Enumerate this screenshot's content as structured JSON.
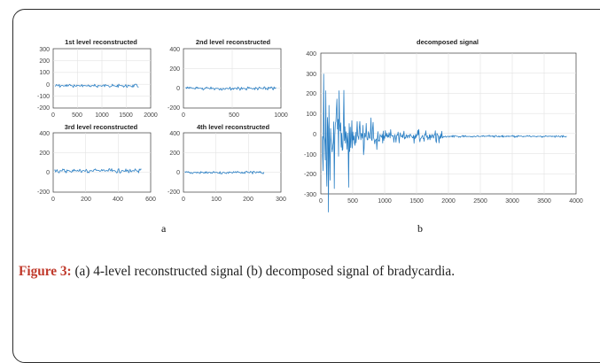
{
  "figure": {
    "panels": [
      {
        "id": "p1",
        "title": "1st level reconstructed",
        "xticks": [
          "0",
          "500",
          "1000",
          "1500",
          "2000"
        ],
        "yticks": [
          "300",
          "200",
          "100",
          "0",
          "-100",
          "-200"
        ]
      },
      {
        "id": "p2",
        "title": "2nd level reconstructed",
        "xticks": [
          "0",
          "500",
          "1000"
        ],
        "yticks": [
          "400",
          "200",
          "0",
          "-200"
        ]
      },
      {
        "id": "p3",
        "title": "3rd level reconstructed",
        "xticks": [
          "0",
          "200",
          "400",
          "600"
        ],
        "yticks": [
          "400",
          "200",
          "0",
          "-200"
        ]
      },
      {
        "id": "p4",
        "title": "4th level reconstructed",
        "xticks": [
          "0",
          "100",
          "200",
          "300"
        ],
        "yticks": [
          "400",
          "200",
          "0",
          "-200"
        ]
      },
      {
        "id": "p5",
        "title": "decomposed signal",
        "xticks": [
          "0",
          "500",
          "1000",
          "1500",
          "2000",
          "2500",
          "3000",
          "3500",
          "4000"
        ],
        "yticks": [
          "400",
          "300",
          "200",
          "100",
          "0",
          "-100",
          "-200",
          "-300"
        ]
      }
    ],
    "sublabel_a": "a",
    "sublabel_b": "b",
    "signal_color": "#2a7fc4"
  },
  "caption": {
    "label": "Figure 3:",
    "text": " (a) 4-level reconstructed signal (b) decomposed signal of bradycardia."
  }
}
